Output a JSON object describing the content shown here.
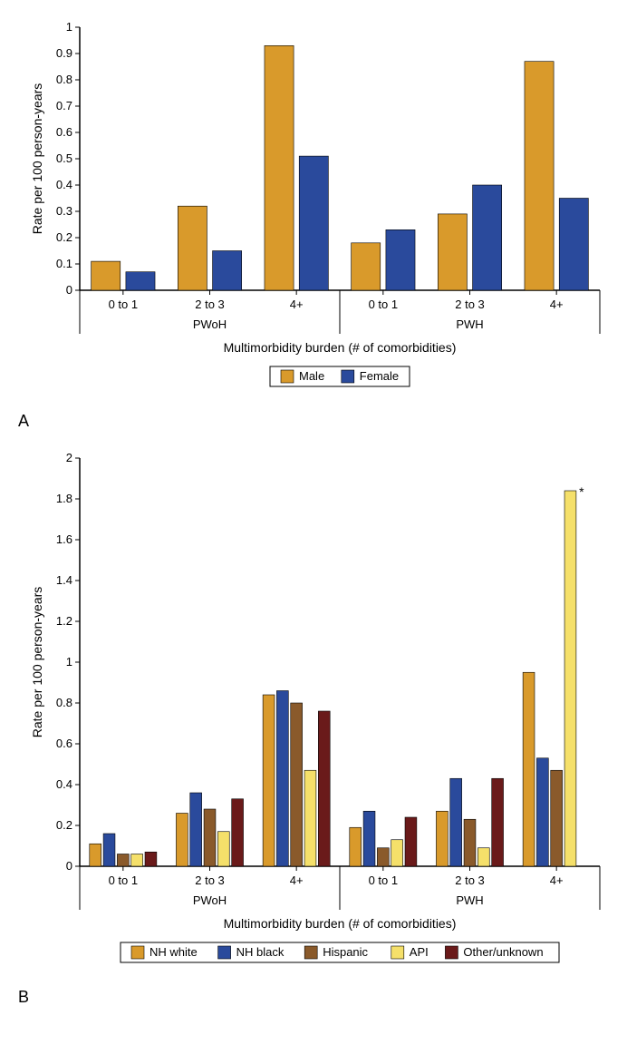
{
  "chartA": {
    "type": "bar",
    "ylabel": "Rate per 100 person-years",
    "xlabel": "Multimorbidity burden (# of comorbidities)",
    "ylim": [
      0,
      1
    ],
    "ytick_step": 0.1,
    "groups": [
      "PWoH",
      "PWH"
    ],
    "categories": [
      "0 to 1",
      "2 to 3",
      "4+"
    ],
    "series": [
      {
        "name": "Male",
        "color": "#d99a2b"
      },
      {
        "name": "Female",
        "color": "#2a4a9c"
      }
    ],
    "values": {
      "PWoH": {
        "0 to 1": [
          0.11,
          0.07
        ],
        "2 to 3": [
          0.32,
          0.15
        ],
        "4+": [
          0.93,
          0.51
        ]
      },
      "PWH": {
        "0 to 1": [
          0.18,
          0.23
        ],
        "2 to 3": [
          0.29,
          0.4
        ],
        "4+": [
          0.87,
          0.35
        ]
      }
    },
    "axis_color": "#000000",
    "background_color": "#ffffff",
    "bar_width": 0.38,
    "tick_fontsize": 13,
    "label_fontsize": 14,
    "panel_label": "A"
  },
  "chartB": {
    "type": "bar",
    "ylabel": "Rate per 100 person-years",
    "xlabel": "Multimorbidity burden (# of comorbidities)",
    "ylim": [
      0,
      2
    ],
    "ytick_step": 0.2,
    "groups": [
      "PWoH",
      "PWH"
    ],
    "categories": [
      "0 to 1",
      "2 to 3",
      "4+"
    ],
    "series": [
      {
        "name": "NH white",
        "color": "#d99a2b"
      },
      {
        "name": "NH black",
        "color": "#2a4a9c"
      },
      {
        "name": "Hispanic",
        "color": "#8a5a2b"
      },
      {
        "name": "API",
        "color": "#f5e06a"
      },
      {
        "name": "Other/unknown",
        "color": "#6a1a1a"
      }
    ],
    "values": {
      "PWoH": {
        "0 to 1": [
          0.11,
          0.16,
          0.06,
          0.06,
          0.07
        ],
        "2 to 3": [
          0.26,
          0.36,
          0.28,
          0.17,
          0.33
        ],
        "4+": [
          0.84,
          0.86,
          0.8,
          0.47,
          0.76
        ]
      },
      "PWH": {
        "0 to 1": [
          0.19,
          0.27,
          0.09,
          0.13,
          0.24
        ],
        "2 to 3": [
          0.27,
          0.43,
          0.23,
          0.09,
          0.43
        ],
        "4+": [
          0.95,
          0.53,
          0.47,
          1.84,
          0
        ]
      }
    },
    "annotations": [
      {
        "group": "PWH",
        "category": "4+",
        "series_index": 3,
        "symbol": "*"
      }
    ],
    "axis_color": "#000000",
    "background_color": "#ffffff",
    "bar_width": 0.16,
    "tick_fontsize": 13,
    "label_fontsize": 14,
    "panel_label": "B"
  }
}
